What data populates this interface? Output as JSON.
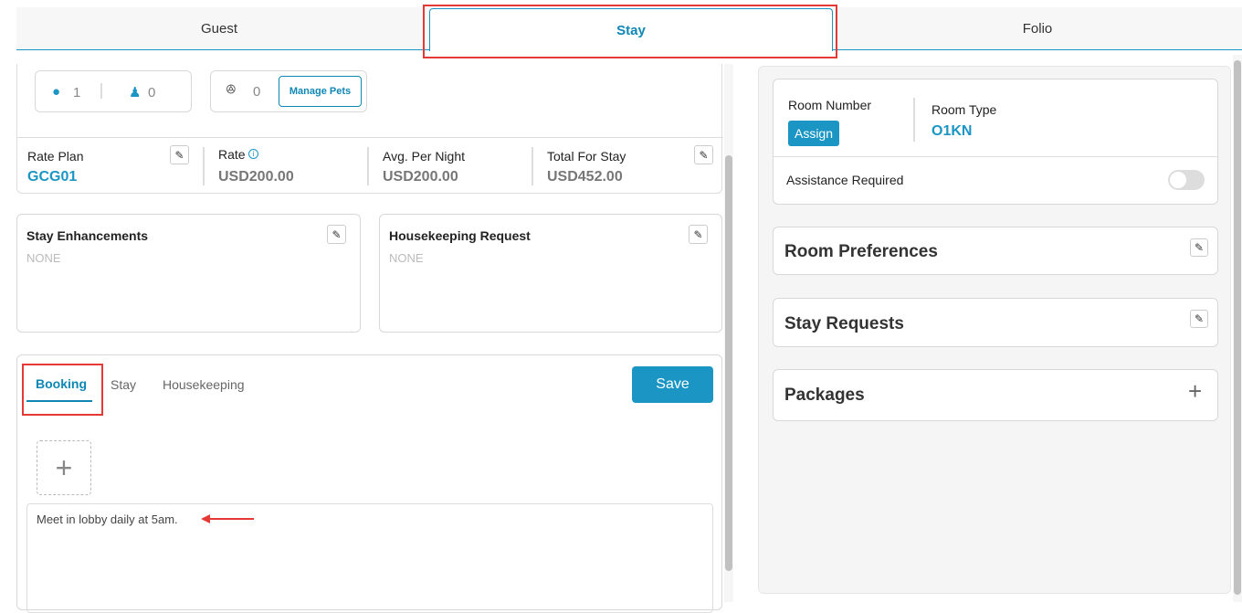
{
  "tabs": {
    "guest": "Guest",
    "stay": "Stay",
    "folio": "Folio"
  },
  "occupancy": {
    "adults": "1",
    "children": "0",
    "pets": "0",
    "manage_pets": "Manage Pets"
  },
  "rates": {
    "rate_plan_label": "Rate Plan",
    "rate_plan": "GCG01",
    "rate_label": "Rate",
    "rate": "USD200.00",
    "avg_label": "Avg. Per Night",
    "avg": "USD200.00",
    "total_label": "Total For Stay",
    "total": "USD452.00"
  },
  "enhancements": {
    "title": "Stay Enhancements",
    "value": "NONE"
  },
  "housekeeping": {
    "title": "Housekeeping Request",
    "value": "NONE"
  },
  "notes": {
    "tabs": [
      "Booking",
      "Stay",
      "Housekeeping"
    ],
    "save": "Save",
    "text": "Meet in lobby daily at 5am."
  },
  "room": {
    "number_label": "Room Number",
    "assign": "Assign",
    "type_label": "Room Type",
    "type": "O1KN",
    "assistance_label": "Assistance Required",
    "assistance_on": false
  },
  "sections": {
    "room_prefs": "Room Preferences",
    "stay_requests": "Stay Requests",
    "packages": "Packages"
  },
  "colors": {
    "accent": "#1a95c4",
    "highlight": "#e53935"
  }
}
